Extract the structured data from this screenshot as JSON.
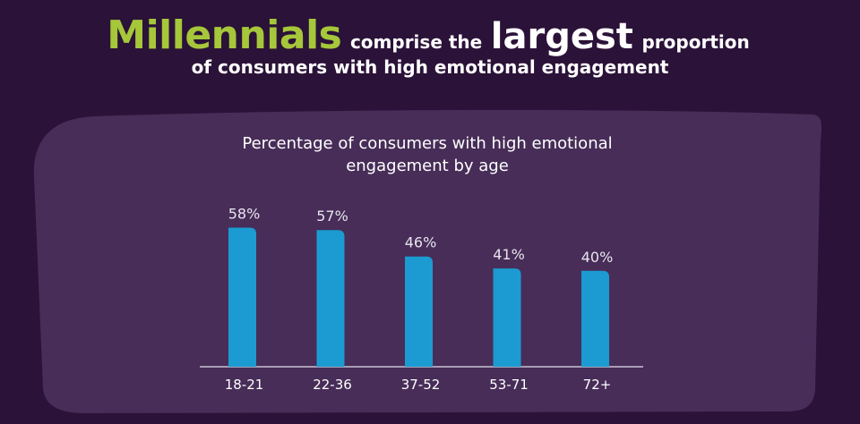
{
  "headline": {
    "word1": "Millennials",
    "part2": "comprise the",
    "word3": "largest",
    "part4": "proportion",
    "line2": "of consumers with high emotional engagement"
  },
  "chart_data": {
    "type": "bar",
    "title_line1": "Percentage of consumers with high emotional",
    "title_line2": "engagement by age",
    "categories": [
      "18-21",
      "22-36",
      "37-52",
      "53-71",
      "72+"
    ],
    "values": [
      58,
      57,
      46,
      41,
      40
    ],
    "value_labels": [
      "58%",
      "57%",
      "46%",
      "41%",
      "40%"
    ],
    "unit": "%",
    "ylim": [
      0,
      100
    ],
    "bar_color": "#1b9bd1",
    "label_color": "#e8e4ee"
  },
  "colors": {
    "background": "#2b1238",
    "panel": "#472d58",
    "accent": "#a6c73a",
    "axis": "#c9c2d2"
  }
}
